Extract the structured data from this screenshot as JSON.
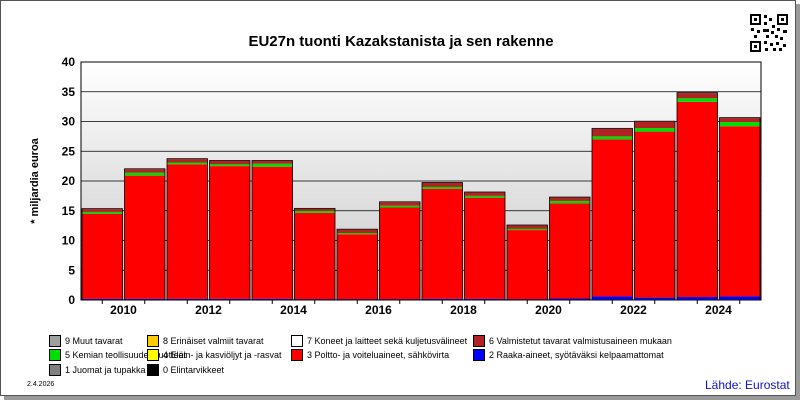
{
  "chart_data": {
    "type": "bar",
    "stacked": true,
    "title": "EU27n tuonti Kazakstanista ja sen rakenne",
    "ylabel": "* miljardia euroa",
    "ylim": [
      0,
      40
    ],
    "yticks": [
      "0",
      "5",
      "10",
      "15",
      "20",
      "25",
      "30",
      "35",
      "40"
    ],
    "grid": true,
    "legend_position": "bottom",
    "categories": [
      "2010",
      "2011",
      "2012",
      "2013",
      "2014",
      "2015",
      "2016",
      "2017",
      "2018",
      "2019",
      "2020",
      "2021",
      "2022",
      "2023",
      "2024",
      "2025"
    ],
    "xtick_labels": [
      "2010",
      "",
      "2012",
      "",
      "2014",
      "",
      "2016",
      "",
      "2018",
      "",
      "2020",
      "",
      "2022",
      "",
      "2024",
      ""
    ],
    "series": [
      {
        "name": "0 Elintarvikkeet",
        "color": "#000000",
        "values": [
          0.05,
          0.05,
          0.05,
          0.05,
          0.05,
          0.05,
          0.05,
          0.05,
          0.05,
          0.05,
          0.05,
          0.05,
          0.1,
          0.1,
          0.1,
          0.1
        ]
      },
      {
        "name": "2 Raaka-aineet, syötäväksi kelpaamattomat",
        "color": "#0000ff",
        "values": [
          0.15,
          0.15,
          0.15,
          0.15,
          0.15,
          0.1,
          0.1,
          0.1,
          0.15,
          0.15,
          0.1,
          0.2,
          0.5,
          0.3,
          0.4,
          0.5
        ]
      },
      {
        "name": "3 Poltto- ja voiteluaineet, sähkövirta",
        "color": "#ff0000",
        "values": [
          14.3,
          20.7,
          22.6,
          22.3,
          22.2,
          14.5,
          10.9,
          15.4,
          18.5,
          17.0,
          11.6,
          16.0,
          26.4,
          27.9,
          32.8,
          28.6
        ]
      },
      {
        "name": "5 Kemian teollisuuden tuotteet",
        "color": "#00dd00",
        "values": [
          0.3,
          0.5,
          0.3,
          0.3,
          0.5,
          0.3,
          0.2,
          0.3,
          0.3,
          0.3,
          0.2,
          0.4,
          0.5,
          0.6,
          0.6,
          0.7
        ]
      },
      {
        "name": "6 Valmistetut tavarat valmistusaineen mukaan",
        "color": "#b22222",
        "values": [
          0.5,
          0.6,
          0.6,
          0.6,
          0.5,
          0.4,
          0.6,
          0.6,
          0.7,
          0.6,
          0.6,
          0.6,
          1.3,
          1.1,
          0.9,
          0.7
        ]
      },
      {
        "name": "9 Muut tavarat",
        "color": "#a0a0a0",
        "values": [
          0.05,
          0.05,
          0.05,
          0.05,
          0.05,
          0.05,
          0.05,
          0.05,
          0.05,
          0.05,
          0.05,
          0.05,
          0.05,
          0.05,
          0.05,
          0.05
        ]
      }
    ]
  },
  "legend": [
    {
      "label": "9 Muut tavarat",
      "color": "#a0a0a0"
    },
    {
      "label": "8 Erinäiset valmiit tavarat",
      "color": "#ffcc00"
    },
    {
      "label": "7 Koneet ja laitteet sekä kuljetusvälineet",
      "color": "#ffffff"
    },
    {
      "label": "6 Valmistetut tavarat valmistusaineen mukaan",
      "color": "#b22222"
    },
    {
      "label": "5 Kemian teollisuuden tuotteet",
      "color": "#00dd00"
    },
    {
      "label": "4 Eläin- ja kasviöljyt ja -rasvat",
      "color": "#ffff00"
    },
    {
      "label": "3 Poltto- ja voiteluaineet, sähkövirta",
      "color": "#ff0000"
    },
    {
      "label": "2 Raaka-aineet, syötäväksi kelpaamattomat",
      "color": "#0000ff"
    },
    {
      "label": "1 Juomat ja tupakka",
      "color": "#808080"
    },
    {
      "label": "0 Elintarvikkeet",
      "color": "#000000"
    }
  ],
  "footer": {
    "date": "2.4.2026",
    "source": "Lähde: Eurostat"
  },
  "qr_icon": "qr-code-icon"
}
